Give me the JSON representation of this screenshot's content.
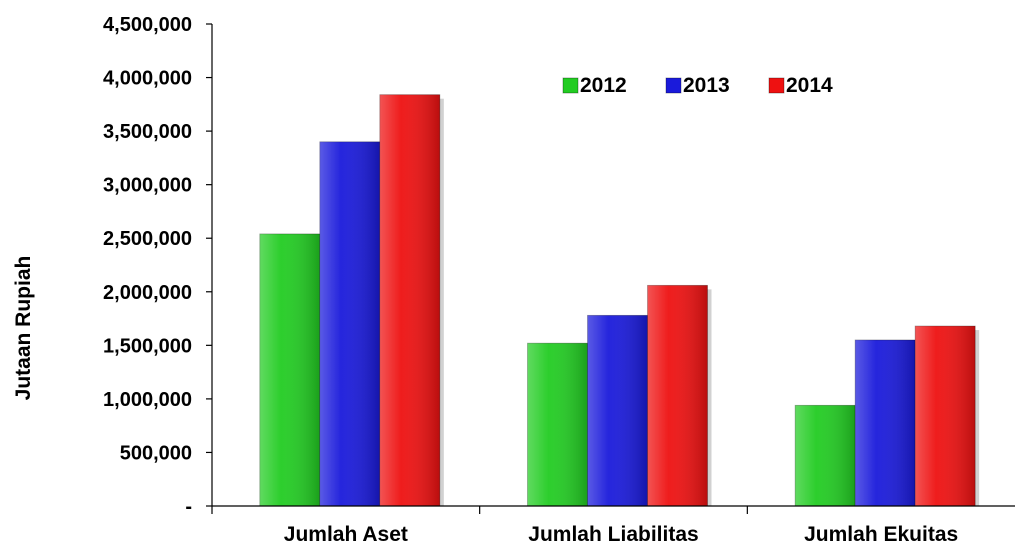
{
  "chart_data": {
    "type": "bar",
    "title": "",
    "xlabel": "",
    "ylabel": "Jutaan Rupiah",
    "categories": [
      "Jumlah Aset",
      "Jumlah Liabilitas",
      "Jumlah Ekuitas"
    ],
    "series": [
      {
        "name": "2012",
        "color": "#22cc22",
        "values": [
          2540000,
          1520000,
          940000
        ]
      },
      {
        "name": "2013",
        "color": "#1a1adb",
        "values": [
          3400000,
          1780000,
          1550000
        ]
      },
      {
        "name": "2014",
        "color": "#ee1111",
        "values": [
          3840000,
          2060000,
          1680000
        ]
      }
    ],
    "ylim": [
      0,
      4500000
    ],
    "yticks": [
      0,
      500000,
      1000000,
      1500000,
      2000000,
      2500000,
      3000000,
      3500000,
      4000000,
      4500000
    ],
    "ytick_labels": [
      "-",
      "500,000",
      "1,000,000",
      "1,500,000",
      "2,000,000",
      "2,500,000",
      "3,000,000",
      "3,500,000",
      "4,000,000",
      "4,500,000"
    ],
    "grid": false,
    "legend_position": "top-center"
  }
}
